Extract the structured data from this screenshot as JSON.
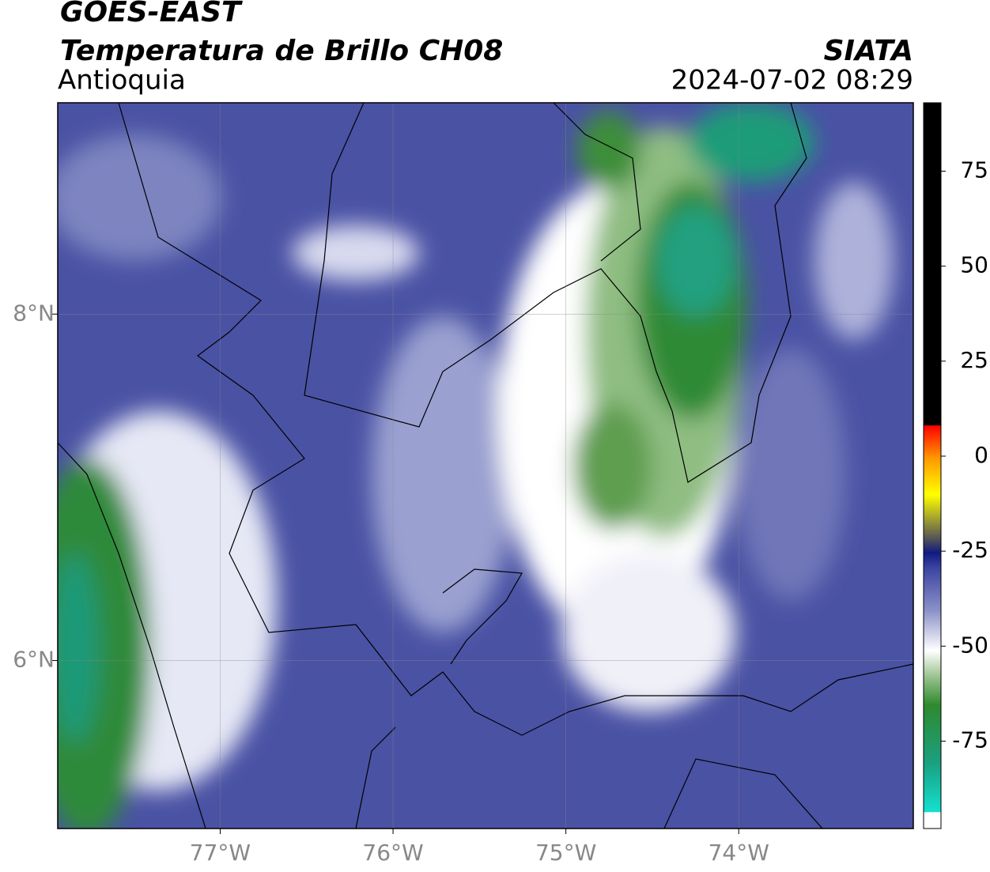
{
  "header": {
    "title": "GOES-EAST",
    "subtitle": "Temperatura de Brillo CH08",
    "region": "Antioquia",
    "source": "SIATA",
    "datetime": "2024-07-02 08:29"
  },
  "map": {
    "xlim": [
      -77.94,
      -72.99
    ],
    "ylim": [
      5.03,
      9.22
    ],
    "grid": true,
    "xticks": [
      {
        "value": -77,
        "label": "77°W"
      },
      {
        "value": -76,
        "label": "76°W"
      },
      {
        "value": -75,
        "label": "75°W"
      },
      {
        "value": -74,
        "label": "74°W"
      }
    ],
    "yticks": [
      {
        "value": 8,
        "label": "8°N"
      },
      {
        "value": 6,
        "label": "6°N"
      }
    ]
  },
  "colorbar": {
    "lim": [
      -98,
      93
    ],
    "ticks": [
      -75,
      -50,
      -25,
      0,
      25,
      50,
      75
    ]
  }
}
